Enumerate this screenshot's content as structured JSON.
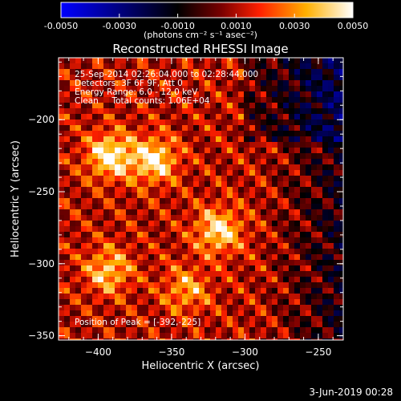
{
  "colorbar": {
    "ticks": [
      "-0.0050",
      "-0.0030",
      "-0.0010",
      "0.0010",
      "0.0030",
      "0.0050"
    ],
    "tick_values": [
      -0.005,
      -0.003,
      -0.001,
      0.001,
      0.003,
      0.005
    ],
    "range": [
      -0.005,
      0.005
    ],
    "unit_label": "(photons cm⁻² s⁻¹ asec⁻²)",
    "colors": [
      "#0000ff",
      "#000000",
      "#6a0000",
      "#ff2200",
      "#ffb000",
      "#ffffff"
    ]
  },
  "chart_data": {
    "type": "heatmap",
    "title": "Reconstructed RHESSI Image",
    "xlabel": "Heliocentric X (arcsec)",
    "ylabel": "Heliocentric Y (arcsec)",
    "xlim": [
      -427,
      -233
    ],
    "ylim": [
      -353,
      -157
    ],
    "x_ticks": [
      -400,
      -350,
      -300,
      -250
    ],
    "y_ticks": [
      -200,
      -250,
      -300,
      -350
    ],
    "x_tick_labels": [
      "−400",
      "−350",
      "−300",
      "−250"
    ],
    "y_tick_labels": [
      "−200",
      "−250",
      "−300",
      "−350"
    ],
    "peak": [
      -392,
      -225
    ],
    "bright_sources": [
      {
        "x": -392,
        "y": -225,
        "strength": 1.0
      },
      {
        "x": -362,
        "y": -228,
        "strength": 0.95
      },
      {
        "x": -318,
        "y": -277,
        "strength": 0.9
      },
      {
        "x": -393,
        "y": -305,
        "strength": 0.75
      },
      {
        "x": -340,
        "y": -318,
        "strength": 0.6
      }
    ],
    "annotations": {
      "time_range": "25-Sep-2014 02:26:04.000 to 02:28:44.000",
      "detectors": "Detectors: 3F 6F 9F, Att 0",
      "energy_range": "Energy Range: 6.0 - 12.0 keV",
      "clean": "Clean     Total counts: 1.06E+04",
      "peak_position": "Position of Peak = [-392,-225]"
    }
  },
  "footer": {
    "date": "3-Jun-2019 00:28"
  }
}
